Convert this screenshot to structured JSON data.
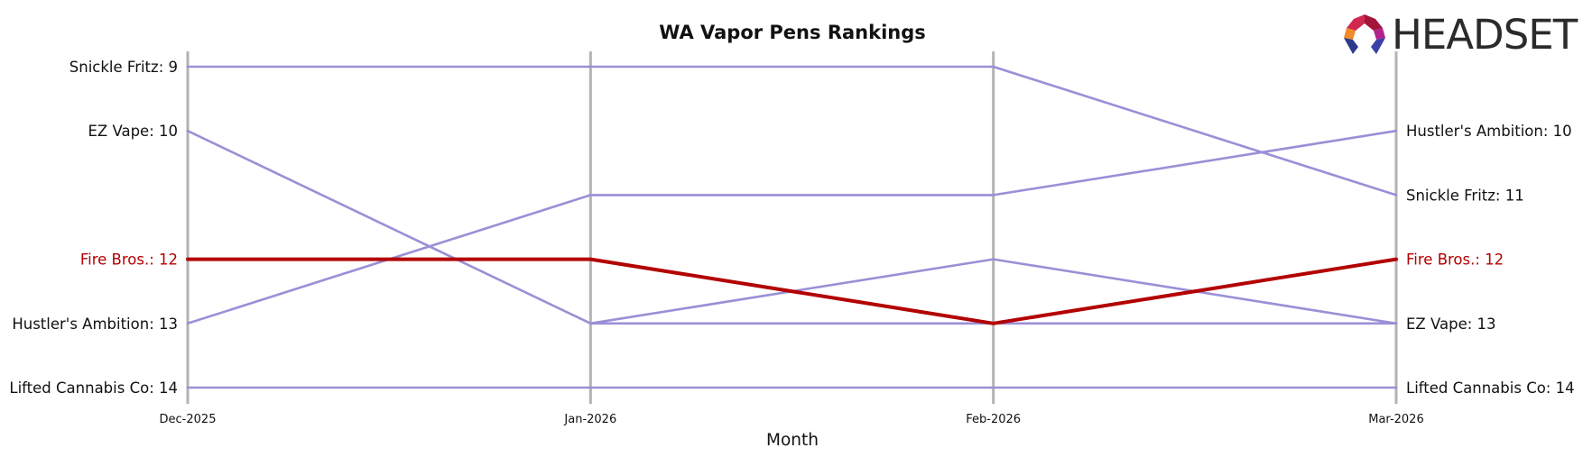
{
  "chart_data": {
    "type": "line",
    "title": "WA Vapor Pens Rankings",
    "xlabel": "Month",
    "ylabel": "",
    "x": [
      "Dec-2025",
      "Jan-2026",
      "Feb-2026",
      "Mar-2026"
    ],
    "ylim": [
      14,
      9
    ],
    "inverted_y": true,
    "grid": false,
    "highlight_series": "Fire Bros.",
    "colors": {
      "default": "#9b8fd6",
      "highlight": "#b30000",
      "vline": "#b3b3b3"
    },
    "series": [
      {
        "name": "Snickle Fritz",
        "values": [
          9,
          9,
          9,
          11
        ]
      },
      {
        "name": "EZ Vape",
        "values": [
          10,
          13,
          null,
          13
        ]
      },
      {
        "name": "Hustler's Ambition",
        "values": [
          13,
          11,
          11,
          10
        ]
      },
      {
        "name": "Lifted Cannabis Co",
        "values": [
          14,
          14,
          14,
          14
        ]
      },
      {
        "name": "Fire Bros.",
        "values": [
          12,
          12,
          13,
          12
        ]
      },
      {
        "name": "EZ Vape",
        "values": [
          null,
          13,
          12,
          13
        ]
      }
    ],
    "left_labels": [
      {
        "text": "Snickle Fritz: 9",
        "rank": 9,
        "highlight": false
      },
      {
        "text": "EZ Vape: 10",
        "rank": 10,
        "highlight": false
      },
      {
        "text": "Fire Bros.: 12",
        "rank": 12,
        "highlight": true
      },
      {
        "text": "Hustler's Ambition: 13",
        "rank": 13,
        "highlight": false
      },
      {
        "text": "Lifted Cannabis Co: 14",
        "rank": 14,
        "highlight": false
      }
    ],
    "right_labels": [
      {
        "text": "Hustler's Ambition: 10",
        "rank": 10,
        "highlight": false
      },
      {
        "text": "Snickle Fritz: 11",
        "rank": 11,
        "highlight": false
      },
      {
        "text": "Fire Bros.: 12",
        "rank": 12,
        "highlight": true
      },
      {
        "text": "EZ Vape: 13",
        "rank": 13,
        "highlight": false
      },
      {
        "text": "Lifted Cannabis Co: 14",
        "rank": 14,
        "highlight": false
      }
    ]
  },
  "logo": {
    "text": "HEADSET",
    "icon": "headset-logo-icon"
  }
}
